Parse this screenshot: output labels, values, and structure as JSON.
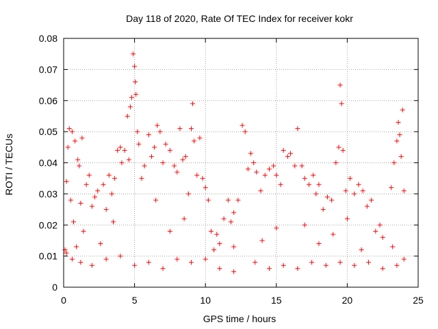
{
  "chart_data": {
    "type": "scatter",
    "title": "Day 118 of 2020, Rate Of TEC Index for receiver kokr",
    "xlabel": "GPS time / hours",
    "ylabel": "ROTI / TECUs",
    "xlim": [
      0,
      25
    ],
    "ylim": [
      0,
      0.08
    ],
    "xticks": [
      "0",
      "5",
      "10",
      "15",
      "20",
      "25"
    ],
    "yticks": [
      "0",
      "0.01",
      "0.02",
      "0.03",
      "0.04",
      "0.05",
      "0.06",
      "0.07",
      "0.08"
    ],
    "grid": true,
    "marker": "+",
    "color": "#ff0000",
    "series": [
      {
        "points": [
          [
            0.1,
            0.012
          ],
          [
            0.2,
            0.034
          ],
          [
            0.3,
            0.045
          ],
          [
            0.4,
            0.051
          ],
          [
            0.5,
            0.028
          ],
          [
            0.6,
            0.05
          ],
          [
            0.7,
            0.021
          ],
          [
            0.8,
            0.047
          ],
          [
            0.9,
            0.013
          ],
          [
            1.0,
            0.041
          ],
          [
            1.1,
            0.039
          ],
          [
            1.2,
            0.027
          ],
          [
            1.3,
            0.048
          ],
          [
            1.4,
            0.018
          ],
          [
            1.6,
            0.033
          ],
          [
            1.8,
            0.036
          ],
          [
            2.0,
            0.026
          ],
          [
            2.2,
            0.029
          ],
          [
            2.4,
            0.031
          ],
          [
            2.6,
            0.014
          ],
          [
            2.8,
            0.033
          ],
          [
            3.0,
            0.025
          ],
          [
            3.2,
            0.036
          ],
          [
            3.4,
            0.03
          ],
          [
            3.6,
            0.035
          ],
          [
            3.8,
            0.044
          ],
          [
            4.0,
            0.045
          ],
          [
            4.1,
            0.04
          ],
          [
            4.3,
            0.044
          ],
          [
            4.5,
            0.055
          ],
          [
            4.6,
            0.041
          ],
          [
            4.7,
            0.058
          ],
          [
            4.8,
            0.061
          ],
          [
            4.9,
            0.075
          ],
          [
            5.0,
            0.071
          ],
          [
            5.05,
            0.066
          ],
          [
            5.1,
            0.062
          ],
          [
            5.2,
            0.05
          ],
          [
            5.3,
            0.046
          ],
          [
            5.5,
            0.035
          ],
          [
            5.7,
            0.039
          ],
          [
            6.0,
            0.049
          ],
          [
            6.2,
            0.042
          ],
          [
            6.4,
            0.045
          ],
          [
            6.6,
            0.052
          ],
          [
            6.8,
            0.05
          ],
          [
            7.0,
            0.04
          ],
          [
            7.2,
            0.046
          ],
          [
            7.5,
            0.044
          ],
          [
            7.8,
            0.039
          ],
          [
            8.0,
            0.037
          ],
          [
            8.2,
            0.051
          ],
          [
            8.4,
            0.041
          ],
          [
            8.6,
            0.042
          ],
          [
            8.8,
            0.03
          ],
          [
            9.0,
            0.051
          ],
          [
            9.1,
            0.059
          ],
          [
            9.2,
            0.047
          ],
          [
            9.4,
            0.036
          ],
          [
            9.6,
            0.048
          ],
          [
            9.8,
            0.035
          ],
          [
            10.0,
            0.032
          ],
          [
            10.2,
            0.028
          ],
          [
            10.4,
            0.018
          ],
          [
            10.6,
            0.012
          ],
          [
            10.8,
            0.017
          ],
          [
            11.0,
            0.014
          ],
          [
            11.3,
            0.022
          ],
          [
            11.6,
            0.028
          ],
          [
            11.8,
            0.021
          ],
          [
            12.0,
            0.024
          ],
          [
            12.3,
            0.028
          ],
          [
            12.6,
            0.052
          ],
          [
            12.8,
            0.05
          ],
          [
            13.0,
            0.038
          ],
          [
            13.2,
            0.043
          ],
          [
            13.4,
            0.04
          ],
          [
            13.6,
            0.037
          ],
          [
            13.9,
            0.031
          ],
          [
            14.2,
            0.036
          ],
          [
            14.5,
            0.038
          ],
          [
            14.8,
            0.039
          ],
          [
            15.0,
            0.036
          ],
          [
            15.3,
            0.033
          ],
          [
            15.5,
            0.044
          ],
          [
            15.8,
            0.042
          ],
          [
            16.0,
            0.043
          ],
          [
            16.3,
            0.039
          ],
          [
            16.5,
            0.051
          ],
          [
            16.8,
            0.039
          ],
          [
            17.0,
            0.035
          ],
          [
            17.3,
            0.033
          ],
          [
            17.6,
            0.036
          ],
          [
            17.8,
            0.03
          ],
          [
            18.0,
            0.033
          ],
          [
            18.3,
            0.025
          ],
          [
            18.6,
            0.029
          ],
          [
            18.9,
            0.028
          ],
          [
            19.2,
            0.04
          ],
          [
            19.4,
            0.045
          ],
          [
            19.5,
            0.065
          ],
          [
            19.6,
            0.059
          ],
          [
            19.7,
            0.044
          ],
          [
            19.9,
            0.031
          ],
          [
            20.2,
            0.035
          ],
          [
            20.5,
            0.03
          ],
          [
            20.8,
            0.033
          ],
          [
            21.1,
            0.031
          ],
          [
            21.4,
            0.026
          ],
          [
            21.7,
            0.028
          ],
          [
            22.0,
            0.018
          ],
          [
            22.3,
            0.02
          ],
          [
            23.1,
            0.032
          ],
          [
            23.3,
            0.04
          ],
          [
            23.5,
            0.047
          ],
          [
            23.6,
            0.053
          ],
          [
            23.7,
            0.049
          ],
          [
            23.8,
            0.042
          ],
          [
            23.9,
            0.057
          ],
          [
            24.0,
            0.031
          ],
          [
            0.2,
            0.011
          ],
          [
            0.6,
            0.009
          ],
          [
            1.2,
            0.008
          ],
          [
            2.0,
            0.007
          ],
          [
            3.0,
            0.009
          ],
          [
            4.0,
            0.01
          ],
          [
            5.0,
            0.007
          ],
          [
            6.0,
            0.008
          ],
          [
            7.0,
            0.006
          ],
          [
            8.0,
            0.009
          ],
          [
            9.0,
            0.008
          ],
          [
            10.0,
            0.009
          ],
          [
            11.0,
            0.006
          ],
          [
            12.0,
            0.005
          ],
          [
            13.5,
            0.008
          ],
          [
            14.5,
            0.006
          ],
          [
            15.5,
            0.007
          ],
          [
            16.5,
            0.006
          ],
          [
            17.5,
            0.008
          ],
          [
            18.5,
            0.007
          ],
          [
            19.5,
            0.008
          ],
          [
            20.5,
            0.007
          ],
          [
            21.5,
            0.008
          ],
          [
            22.5,
            0.006
          ],
          [
            23.5,
            0.007
          ],
          [
            24.0,
            0.009
          ],
          [
            3.5,
            0.021
          ],
          [
            7.5,
            0.018
          ],
          [
            12.0,
            0.013
          ],
          [
            14.0,
            0.015
          ],
          [
            18.0,
            0.014
          ],
          [
            21.0,
            0.012
          ],
          [
            22.5,
            0.016
          ],
          [
            23.2,
            0.013
          ],
          [
            6.5,
            0.028
          ],
          [
            8.5,
            0.022
          ],
          [
            15.0,
            0.019
          ],
          [
            17.0,
            0.02
          ],
          [
            19.0,
            0.017
          ],
          [
            20.0,
            0.022
          ]
        ]
      }
    ]
  }
}
